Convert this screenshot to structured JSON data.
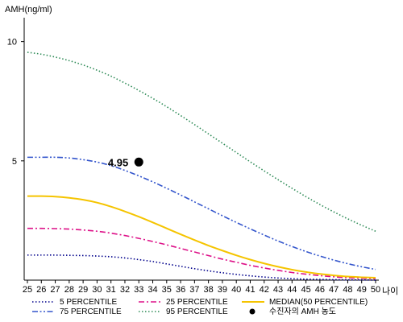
{
  "chart_data": {
    "type": "line",
    "ylabel": "AMH(ng/ml)",
    "xlabel": "나이",
    "xlim": [
      25,
      50
    ],
    "ylim": [
      0,
      11
    ],
    "x_ticks": [
      "25",
      "26",
      "27",
      "28",
      "29",
      "30",
      "31",
      "32",
      "33",
      "34",
      "35",
      "36",
      "37",
      "38",
      "39",
      "40",
      "41",
      "42",
      "43",
      "44",
      "45",
      "46",
      "47",
      "48",
      "49",
      "50"
    ],
    "y_ticks": [
      "5",
      "10"
    ],
    "grid": false,
    "legend_position": "bottom",
    "x": [
      25,
      26,
      27,
      28,
      29,
      30,
      31,
      32,
      33,
      34,
      35,
      36,
      37,
      38,
      39,
      40,
      41,
      42,
      43,
      44,
      45,
      46,
      47,
      48,
      49,
      50
    ],
    "series": [
      {
        "name": "5 PERCENTILE",
        "color": "#00008b",
        "dash": "dotted",
        "values": [
          1.05,
          1.05,
          1.05,
          1.04,
          1.03,
          1.01,
          0.98,
          0.93,
          0.86,
          0.78,
          0.68,
          0.58,
          0.48,
          0.39,
          0.31,
          0.24,
          0.18,
          0.13,
          0.09,
          0.06,
          0.04,
          0.03,
          0.02,
          0.01,
          0.01,
          0.0
        ]
      },
      {
        "name": "25 PERCENTILE",
        "color": "#dd1188",
        "dash": "dashdot",
        "values": [
          2.17,
          2.17,
          2.16,
          2.14,
          2.1,
          2.05,
          1.97,
          1.87,
          1.75,
          1.62,
          1.48,
          1.33,
          1.18,
          1.03,
          0.88,
          0.75,
          0.62,
          0.51,
          0.41,
          0.32,
          0.25,
          0.19,
          0.14,
          0.1,
          0.08,
          0.06
        ]
      },
      {
        "name": "MEDIAN(50 PERCENTILE)",
        "color": "#f5c400",
        "dash": "solid",
        "values": [
          3.52,
          3.52,
          3.5,
          3.45,
          3.37,
          3.25,
          3.08,
          2.88,
          2.66,
          2.42,
          2.17,
          1.92,
          1.68,
          1.45,
          1.24,
          1.04,
          0.86,
          0.7,
          0.56,
          0.44,
          0.34,
          0.26,
          0.2,
          0.15,
          0.12,
          0.1
        ]
      },
      {
        "name": "75 PERCENTILE",
        "color": "#3355cc",
        "dash": "dashdotdot",
        "values": [
          5.15,
          5.15,
          5.15,
          5.12,
          5.05,
          4.95,
          4.8,
          4.6,
          4.37,
          4.12,
          3.85,
          3.57,
          3.28,
          2.99,
          2.7,
          2.42,
          2.15,
          1.89,
          1.64,
          1.41,
          1.2,
          1.01,
          0.84,
          0.69,
          0.56,
          0.45
        ]
      },
      {
        "name": "95 PERCENTILE",
        "color": "#2e8b57",
        "dash": "dotted",
        "values": [
          9.55,
          9.47,
          9.35,
          9.2,
          9.02,
          8.8,
          8.55,
          8.26,
          7.95,
          7.62,
          7.27,
          6.9,
          6.52,
          6.13,
          5.74,
          5.35,
          4.96,
          4.58,
          4.21,
          3.85,
          3.5,
          3.17,
          2.86,
          2.57,
          2.3,
          2.05
        ]
      }
    ],
    "marker": {
      "name": "수진자의 AMH 농도",
      "x": 33,
      "y": 4.95,
      "label": "4.95",
      "color": "#000000"
    },
    "legend_order": [
      "5 PERCENTILE",
      "25 PERCENTILE",
      "MEDIAN(50 PERCENTILE)",
      "75 PERCENTILE",
      "95 PERCENTILE",
      "수진자의 AMH 농도"
    ]
  }
}
